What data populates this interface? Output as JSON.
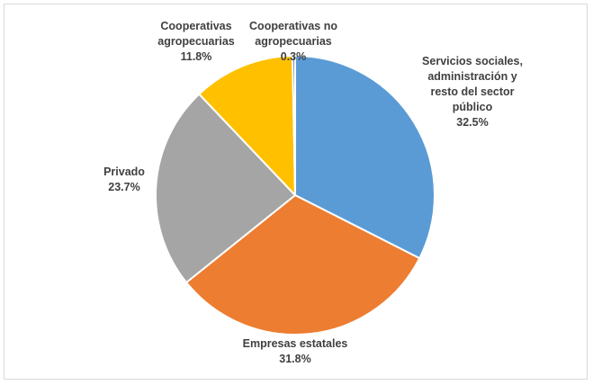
{
  "chart_data": {
    "type": "pie",
    "title": "",
    "slices": [
      {
        "label_lines": [
          "Servicios sociales,",
          "administración y",
          "resto del sector",
          "público"
        ],
        "value_label": "32.5%",
        "value": 32.5,
        "color": "#5B9BD5"
      },
      {
        "label_lines": [
          "Empresas estatales"
        ],
        "value_label": "31.8%",
        "value": 31.8,
        "color": "#ED7D31"
      },
      {
        "label_lines": [
          "Privado"
        ],
        "value_label": "23.7%",
        "value": 23.7,
        "color": "#A5A5A5"
      },
      {
        "label_lines": [
          "Cooperativas",
          "agropecuarias"
        ],
        "value_label": "11.8%",
        "value": 11.8,
        "color": "#FFC000"
      },
      {
        "label_lines": [
          "Cooperativas no",
          "agropecuarias"
        ],
        "value_label": "0.3%",
        "value": 0.3,
        "color": "#4472C4"
      }
    ]
  }
}
